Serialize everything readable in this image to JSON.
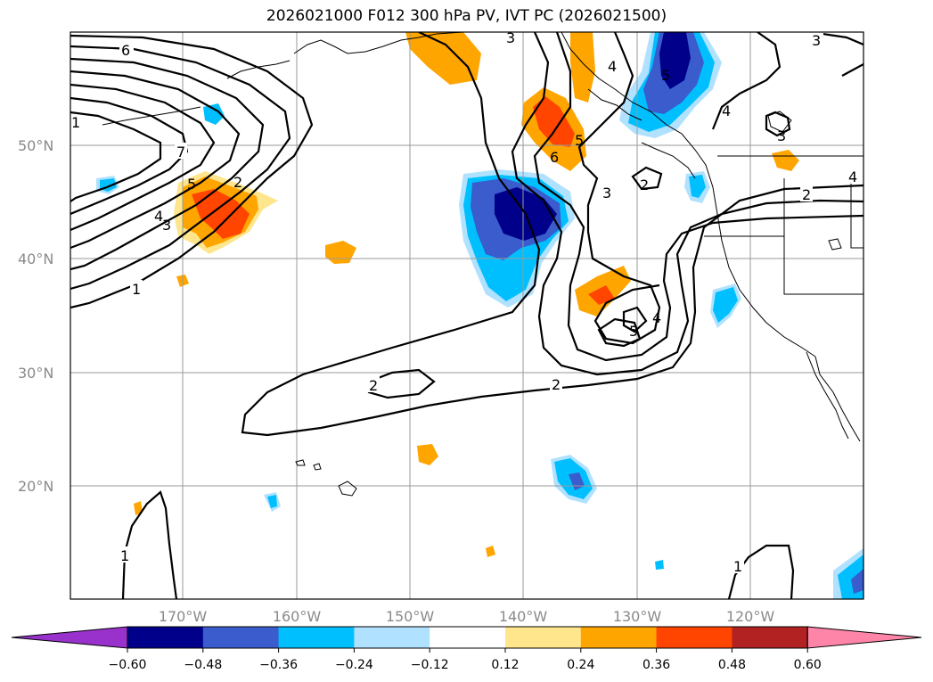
{
  "title": "2026021000 F012 300 hPa PV, IVT PC (2026021500)",
  "lat_labels": [
    "50°N",
    "40°N",
    "30°N",
    "20°N"
  ],
  "lon_labels": [
    "170°W",
    "160°W",
    "150°W",
    "140°W",
    "130°W",
    "120°W"
  ],
  "contour_labels": [
    "6",
    "7",
    "5",
    "4",
    "3",
    "2",
    "1",
    "2",
    "5",
    "6",
    "3",
    "2",
    "3",
    "4",
    "5",
    "4",
    "3",
    "2",
    "4",
    "3",
    "2",
    "1",
    "1",
    "1",
    "5",
    "4"
  ],
  "colorbar": {
    "ticks": [
      "−0.60",
      "−0.48",
      "−0.36",
      "−0.24",
      "−0.12",
      "0.12",
      "0.24",
      "0.36",
      "0.48",
      "0.60"
    ],
    "colors": [
      "#9932cc",
      "#00008b",
      "#3a5ccc",
      "#00bfff",
      "#b0e2ff",
      "#ffffff",
      "#ffe68c",
      "#ffa500",
      "#ff4500",
      "#b22222",
      "#ff85a8"
    ]
  }
}
